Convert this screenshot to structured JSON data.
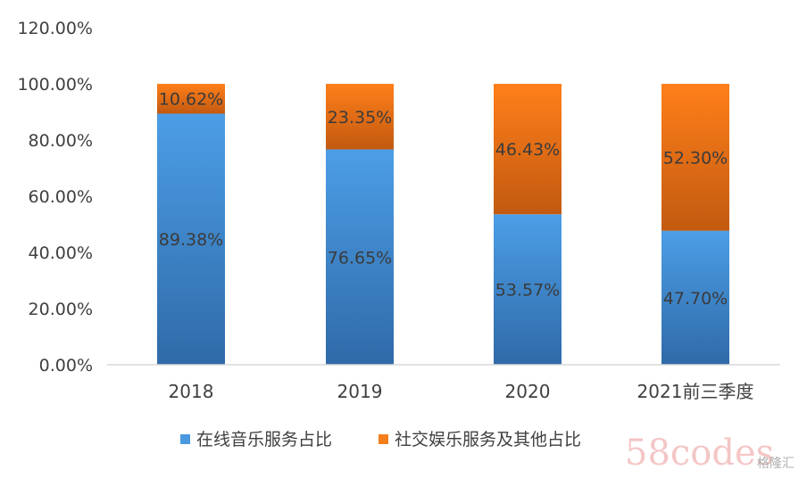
{
  "chart_data": {
    "type": "bar",
    "stacked": true,
    "categories": [
      "2018",
      "2019",
      "2020",
      "2021前三季度"
    ],
    "series": [
      {
        "name": "在线音乐服务占比",
        "values": [
          89.38,
          76.65,
          53.57,
          47.7
        ],
        "labels": [
          "89.38%",
          "76.65%",
          "53.57%",
          "47.70%"
        ],
        "color": "#4a98e0"
      },
      {
        "name": "社交娱乐服务及其他占比",
        "values": [
          10.62,
          23.35,
          46.43,
          52.3
        ],
        "labels": [
          "10.62%",
          "23.35%",
          "46.43%",
          "52.30%"
        ],
        "color": "#f57e1c"
      }
    ],
    "y_ticks": [
      "0.00%",
      "20.00%",
      "40.00%",
      "60.00%",
      "80.00%",
      "100.00%",
      "120.00%"
    ],
    "ylim": [
      0,
      120
    ],
    "grid": false,
    "legend_position": "bottom"
  },
  "watermark": {
    "text": "58codes",
    "badge": "格隆汇"
  },
  "colors": {
    "axis": "#d9d9d9",
    "text": "#404040"
  }
}
